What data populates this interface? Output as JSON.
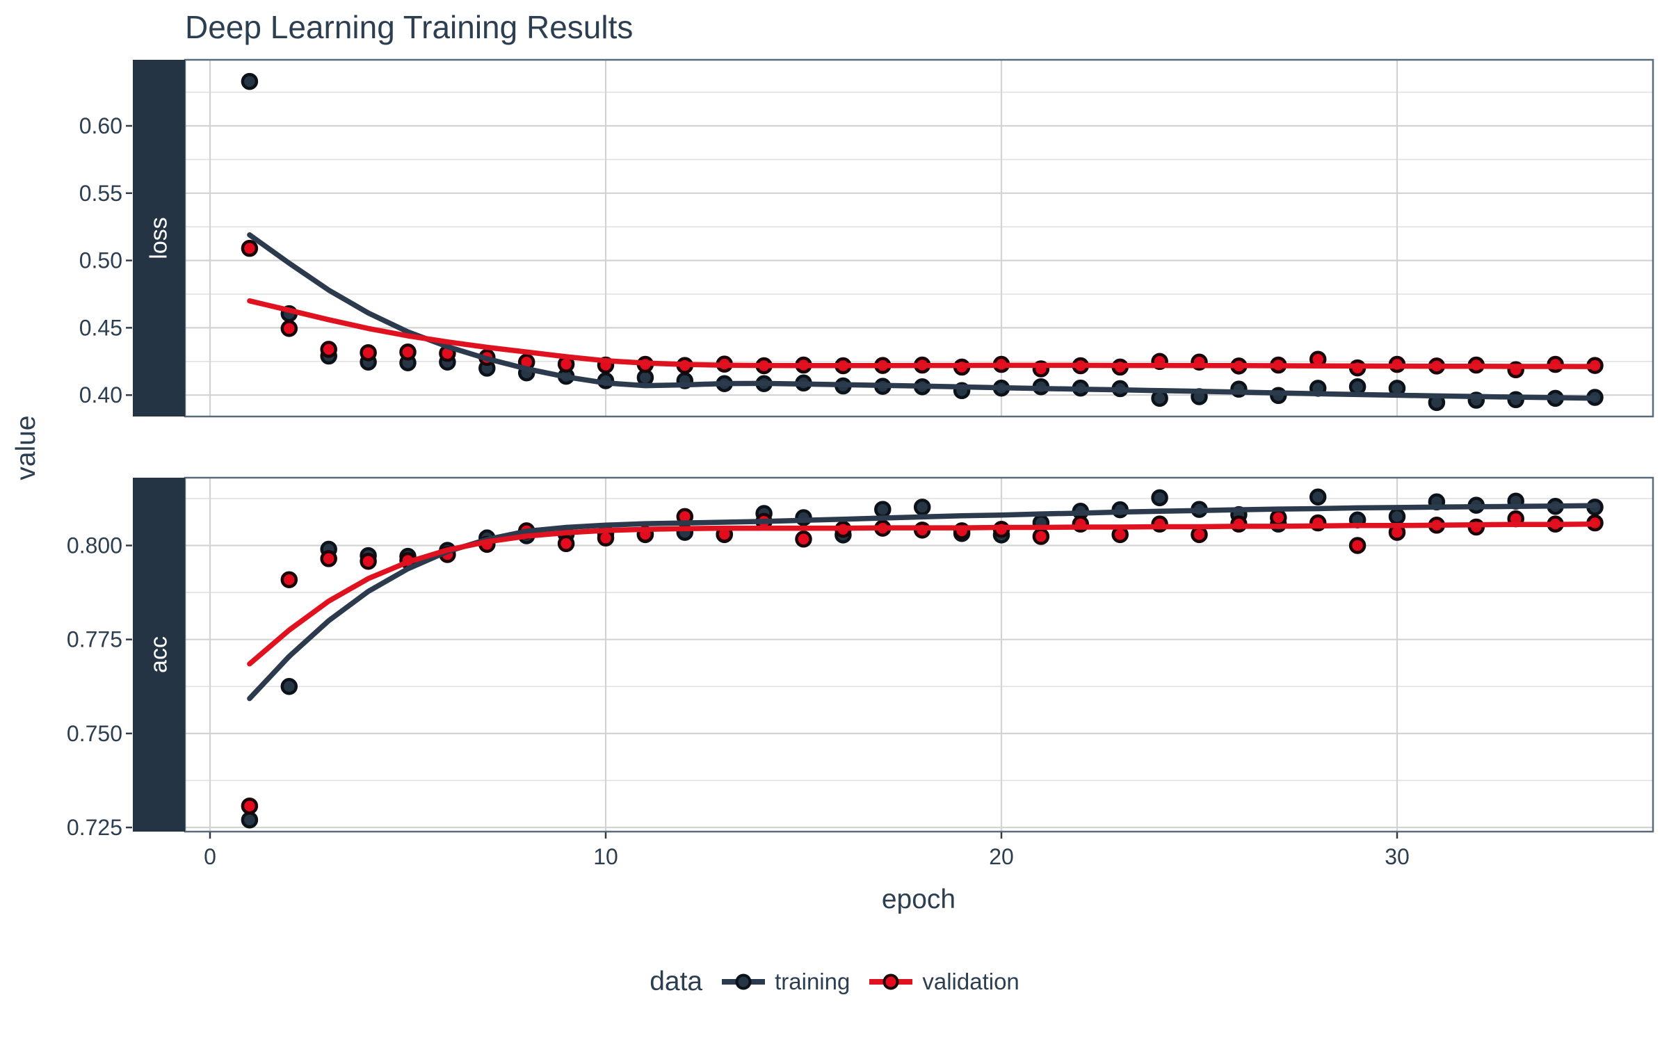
{
  "chart_data": {
    "type": "scatter",
    "subtype": "faceted scatter with loess smooth lines (keras-style training history)",
    "title": "Deep Learning Training Results",
    "xlabel": "epoch",
    "ylabel": "value",
    "legend_position": "bottom",
    "strip_position": "left",
    "grid": "horizontal major+minor, vertical major only",
    "x": {
      "tick_labels": [
        "0",
        "10",
        "20",
        "30"
      ],
      "tick_values": [
        0,
        10,
        20,
        30
      ],
      "range": [
        -0.65,
        36.5
      ]
    },
    "legend": {
      "title": "data",
      "entries": [
        {
          "label": "training",
          "color": "#2b3a4c"
        },
        {
          "label": "validation",
          "color": "#e11220"
        }
      ]
    },
    "epochs": [
      1,
      2,
      3,
      4,
      5,
      6,
      7,
      8,
      9,
      10,
      11,
      12,
      13,
      14,
      15,
      16,
      17,
      18,
      19,
      20,
      21,
      22,
      23,
      24,
      25,
      26,
      27,
      28,
      29,
      30,
      31,
      32,
      33,
      34,
      35
    ],
    "facets": [
      {
        "label": "loss",
        "ylim": [
          0.385,
          0.649
        ],
        "ytick_labels": [
          "0.60",
          "0.55",
          "0.50",
          "0.45",
          "0.40"
        ],
        "ytick_values": [
          0.6,
          0.55,
          0.5,
          0.45,
          0.4
        ],
        "minor_ticks": [
          0.625,
          0.575,
          0.525,
          0.475,
          0.425
        ],
        "series": [
          {
            "name": "training",
            "points": [
              0.633,
              0.4605,
              0.429,
              0.4245,
              0.424,
              0.4245,
              0.42,
              0.4165,
              0.414,
              0.4107,
              0.413,
              0.4107,
              0.4085,
              0.4085,
              0.409,
              0.4068,
              0.4065,
              0.4062,
              0.4033,
              0.4052,
              0.4062,
              0.4052,
              0.4048,
              0.3976,
              0.3988,
              0.4044,
              0.3997,
              0.4051,
              0.4062,
              0.4051,
              0.3945,
              0.3962,
              0.3966,
              0.3976,
              0.3983
            ],
            "smooth": [
              0.519,
              0.498,
              0.478,
              0.461,
              0.447,
              0.436,
              0.427,
              0.4195,
              0.4135,
              0.409,
              0.407,
              0.4076,
              0.4086,
              0.4087,
              0.4082,
              0.4077,
              0.4072,
              0.4067,
              0.4061,
              0.4055,
              0.4049,
              0.4044,
              0.4039,
              0.4033,
              0.4028,
              0.4022,
              0.4016,
              0.401,
              0.4004,
              0.3999,
              0.3994,
              0.3989,
              0.3985,
              0.3981,
              0.3977
            ]
          },
          {
            "name": "validation",
            "points": [
              0.509,
              0.4495,
              0.434,
              0.4315,
              0.432,
              0.431,
              0.428,
              0.4245,
              0.423,
              0.4223,
              0.4228,
              0.422,
              0.423,
              0.4218,
              0.4223,
              0.4218,
              0.422,
              0.4223,
              0.4208,
              0.4228,
              0.4195,
              0.4218,
              0.4208,
              0.425,
              0.4245,
              0.4216,
              0.4223,
              0.4266,
              0.4202,
              0.4228,
              0.4216,
              0.4223,
              0.4188,
              0.4228,
              0.422
            ],
            "smooth": [
              0.47,
              0.463,
              0.456,
              0.4495,
              0.444,
              0.4395,
              0.4355,
              0.432,
              0.4285,
              0.4255,
              0.4238,
              0.4228,
              0.4222,
              0.422,
              0.4219,
              0.4219,
              0.4219,
              0.422,
              0.422,
              0.4221,
              0.4221,
              0.4221,
              0.422,
              0.422,
              0.4219,
              0.4219,
              0.4218,
              0.4217,
              0.4216,
              0.4215,
              0.4214,
              0.4214,
              0.4213,
              0.4213,
              0.4212
            ]
          }
        ]
      },
      {
        "label": "acc",
        "ylim": [
          0.7239,
          0.818
        ],
        "ytick_labels": [
          "0.800",
          "0.775",
          "0.750",
          "0.725"
        ],
        "ytick_values": [
          0.8,
          0.775,
          0.75,
          0.725
        ],
        "minor_ticks": [
          0.8125,
          0.7875,
          0.7625,
          0.7375
        ],
        "series": [
          {
            "name": "training",
            "points": [
              0.727,
              0.7625,
              0.799,
              0.7973,
              0.7971,
              0.7987,
              0.802,
              0.8026,
              0.803,
              0.8032,
              0.8029,
              0.8035,
              0.8029,
              0.8085,
              0.8074,
              0.8028,
              0.8096,
              0.8102,
              0.8032,
              0.8028,
              0.806,
              0.8091,
              0.8095,
              0.8127,
              0.8096,
              0.8082,
              0.8057,
              0.8129,
              0.8068,
              0.8077,
              0.8116,
              0.8107,
              0.8118,
              0.8104,
              0.8102
            ],
            "smooth": [
              0.7593,
              0.7705,
              0.78,
              0.7878,
              0.7938,
              0.7984,
              0.8016,
              0.8038,
              0.8048,
              0.8054,
              0.8058,
              0.806,
              0.8062,
              0.8064,
              0.8067,
              0.807,
              0.8073,
              0.8076,
              0.8079,
              0.8081,
              0.8084,
              0.8086,
              0.8089,
              0.8091,
              0.8093,
              0.8095,
              0.8097,
              0.8098,
              0.81,
              0.8101,
              0.8102,
              0.8103,
              0.8104,
              0.8105,
              0.8106
            ]
          },
          {
            "name": "validation",
            "points": [
              0.7307,
              0.7909,
              0.7965,
              0.7958,
              0.796,
              0.7976,
              0.8003,
              0.8039,
              0.8005,
              0.802,
              0.803,
              0.8077,
              0.803,
              0.8064,
              0.8017,
              0.8043,
              0.8046,
              0.8041,
              0.8039,
              0.8043,
              0.8024,
              0.8057,
              0.8029,
              0.8057,
              0.8029,
              0.8057,
              0.8074,
              0.806,
              0.8,
              0.8035,
              0.8054,
              0.8049,
              0.8071,
              0.8057,
              0.806
            ],
            "smooth": [
              0.7685,
              0.7775,
              0.7852,
              0.7912,
              0.7956,
              0.7988,
              0.801,
              0.8025,
              0.8034,
              0.804,
              0.8043,
              0.8045,
              0.8046,
              0.8046,
              0.8046,
              0.8046,
              0.8047,
              0.8047,
              0.8047,
              0.8048,
              0.8048,
              0.8049,
              0.8049,
              0.805,
              0.805,
              0.8051,
              0.8051,
              0.8052,
              0.8053,
              0.8053,
              0.8054,
              0.8055,
              0.8056,
              0.8056,
              0.8057
            ]
          }
        ]
      }
    ],
    "colors": {
      "training": "#2b3a4c",
      "training_point_fill": "#263645",
      "training_point_stroke": "#0c1219",
      "validation": "#e11220",
      "validation_point_fill": "#e20c1e",
      "validation_point_stroke": "#1a0509",
      "strip_background": "#243444",
      "strip_text": "#ffffff",
      "grid_major": "#d3d3d3",
      "grid_minor": "#e1e1e1",
      "panel_border": "#5a6b7c",
      "axis_tick": "#2f3b47",
      "text": "#2c3e50",
      "background": "#ffffff"
    }
  }
}
